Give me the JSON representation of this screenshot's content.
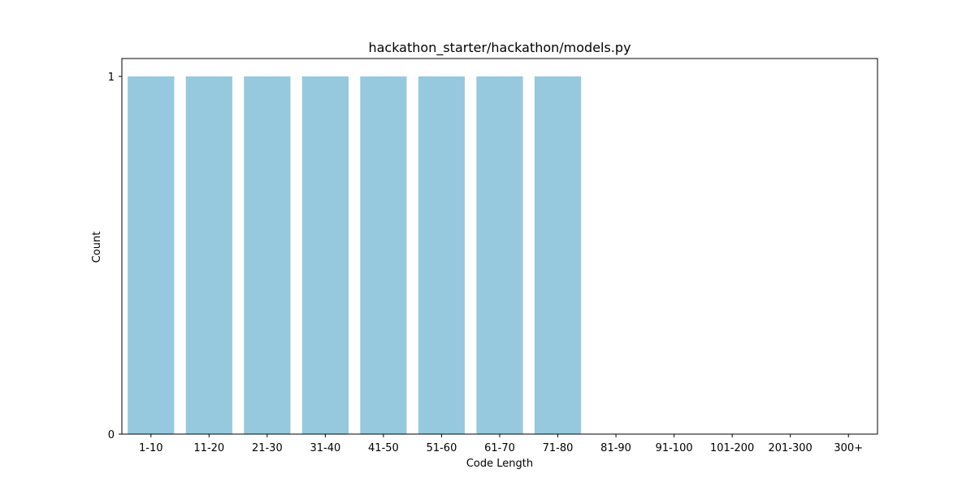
{
  "chart_data": {
    "type": "bar",
    "title": "hackathon_starter/hackathon/models.py",
    "xlabel": "Code Length",
    "ylabel": "Count",
    "categories": [
      "1-10",
      "11-20",
      "21-30",
      "31-40",
      "41-50",
      "51-60",
      "61-70",
      "71-80",
      "81-90",
      "91-100",
      "101-200",
      "201-300",
      "300+"
    ],
    "values": [
      1,
      1,
      1,
      1,
      1,
      1,
      1,
      1,
      0,
      0,
      0,
      0,
      0
    ],
    "ylim": [
      0,
      1.05
    ],
    "yticks": [
      0,
      1
    ],
    "ytick_labels": [
      "0",
      "1"
    ],
    "grid": false,
    "colors": {
      "bar": "#96c9de",
      "axis": "#000000",
      "background": "#ffffff"
    }
  }
}
